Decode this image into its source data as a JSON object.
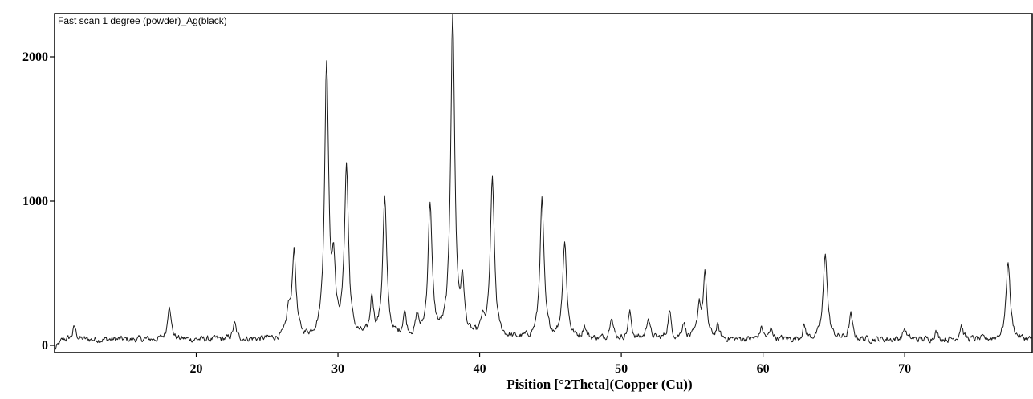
{
  "chart_data": {
    "type": "line",
    "title": "",
    "legend": "Fast scan 1 degree (powder)_Ag(black)",
    "xlabel": "Pisition [°2Theta](Copper (Cu))",
    "ylabel": "",
    "xlim": [
      10,
      79
    ],
    "ylim": [
      -50,
      2300
    ],
    "xticks": [
      20,
      30,
      40,
      50,
      60,
      70
    ],
    "yticks": [
      0,
      1000,
      2000
    ],
    "line_color": "#1a1a1a",
    "noise_level": 40,
    "baseline": 40,
    "peaks": [
      {
        "x": 11.4,
        "y": 85
      },
      {
        "x": 18.1,
        "y": 250
      },
      {
        "x": 22.7,
        "y": 105
      },
      {
        "x": 26.5,
        "y": 160
      },
      {
        "x": 26.9,
        "y": 600
      },
      {
        "x": 29.2,
        "y": 1880
      },
      {
        "x": 29.7,
        "y": 450
      },
      {
        "x": 30.6,
        "y": 1180
      },
      {
        "x": 32.4,
        "y": 270
      },
      {
        "x": 33.3,
        "y": 960
      },
      {
        "x": 34.7,
        "y": 165
      },
      {
        "x": 35.6,
        "y": 130
      },
      {
        "x": 36.5,
        "y": 930
      },
      {
        "x": 38.1,
        "y": 2240
      },
      {
        "x": 38.8,
        "y": 340
      },
      {
        "x": 40.2,
        "y": 105
      },
      {
        "x": 40.9,
        "y": 1100
      },
      {
        "x": 44.4,
        "y": 960
      },
      {
        "x": 46.0,
        "y": 670
      },
      {
        "x": 47.4,
        "y": 85
      },
      {
        "x": 49.3,
        "y": 165
      },
      {
        "x": 50.6,
        "y": 180
      },
      {
        "x": 51.9,
        "y": 150
      },
      {
        "x": 53.4,
        "y": 185
      },
      {
        "x": 54.4,
        "y": 115
      },
      {
        "x": 55.5,
        "y": 230
      },
      {
        "x": 55.9,
        "y": 445
      },
      {
        "x": 56.8,
        "y": 80
      },
      {
        "x": 59.9,
        "y": 80
      },
      {
        "x": 60.6,
        "y": 70
      },
      {
        "x": 62.9,
        "y": 85
      },
      {
        "x": 64.4,
        "y": 600
      },
      {
        "x": 66.2,
        "y": 165
      },
      {
        "x": 70.0,
        "y": 75
      },
      {
        "x": 72.2,
        "y": 55
      },
      {
        "x": 74.0,
        "y": 100
      },
      {
        "x": 77.3,
        "y": 545
      }
    ]
  }
}
